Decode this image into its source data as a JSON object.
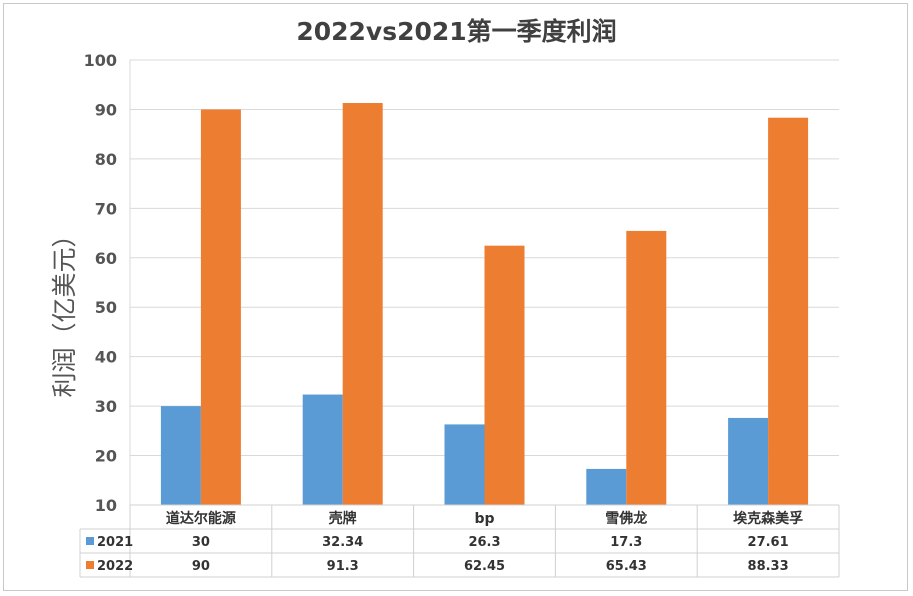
{
  "chart_data": {
    "type": "bar",
    "title": "2022vs2021第一季度利润",
    "ylabel": "利润（亿美元）",
    "xlabel": "",
    "ylim": [
      10,
      100
    ],
    "yticks": [
      10,
      20,
      30,
      40,
      50,
      60,
      70,
      80,
      90,
      100
    ],
    "grid": true,
    "legend": "data-table",
    "categories": [
      "道达尔能源",
      "壳牌",
      "bp",
      "雪佛龙",
      "埃克森美孚"
    ],
    "series": [
      {
        "name": "2021",
        "color": "#5B9BD5",
        "values": [
          30,
          32.34,
          26.3,
          17.3,
          27.61
        ],
        "labels": [
          "30",
          "32.34",
          "26.3",
          "17.3",
          "27.61"
        ]
      },
      {
        "name": "2022",
        "color": "#ED7D31",
        "values": [
          90,
          91.3,
          62.45,
          65.43,
          88.33
        ],
        "labels": [
          "90",
          "91.3",
          "62.45",
          "65.43",
          "88.33"
        ]
      }
    ]
  }
}
